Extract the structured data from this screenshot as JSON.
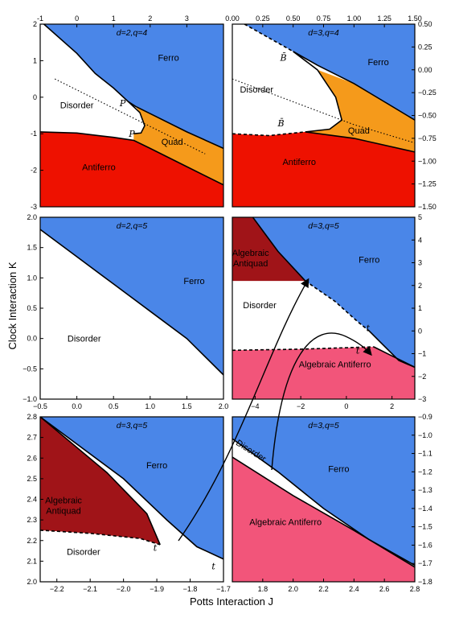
{
  "figure": {
    "xlabel": "Potts Interaction J",
    "ylabel": "Clock Interaction K"
  },
  "colors": {
    "ferro": "#4a86e8",
    "antiferro": "#ee1100",
    "quad": "#f59a1b",
    "algebraic_antiquad": "#a01418",
    "algebraic_antiferro": "#f2557a",
    "disorder": "#ffffff"
  },
  "chart_data": [
    {
      "type": "area",
      "title": "d=2,q=4",
      "xlim": [
        -1,
        4
      ],
      "ylim": [
        -3,
        2
      ],
      "xticks": [
        -1,
        0,
        1,
        2,
        3
      ],
      "yticks": [
        -3,
        -2,
        -1,
        0,
        1,
        2
      ],
      "xaxis_side": "top",
      "yaxis_side": "left",
      "regions": [
        {
          "name": "Ferro",
          "label_at": [
            2.5,
            1.0
          ]
        },
        {
          "name": "Disorder",
          "label_at": [
            0.0,
            -0.3
          ]
        },
        {
          "name": "Quad",
          "label_at": [
            2.6,
            -1.3
          ]
        },
        {
          "name": "Antiferro",
          "label_at": [
            0.6,
            -2.0
          ]
        }
      ],
      "boundaries": {
        "ferro_lower": [
          [
            -0.9,
            2.0
          ],
          [
            0.0,
            1.2
          ],
          [
            0.5,
            0.65
          ],
          [
            1.0,
            0.25
          ],
          [
            1.4,
            -0.12
          ],
          [
            1.6,
            -0.25
          ],
          [
            2.0,
            -0.45
          ],
          [
            3.0,
            -0.95
          ],
          [
            4.0,
            -1.4
          ]
        ],
        "disorder_dome": [
          [
            1.4,
            -0.12
          ],
          [
            1.72,
            -0.42
          ],
          [
            1.85,
            -0.78
          ],
          [
            1.75,
            -0.98
          ],
          [
            1.55,
            -1.0
          ]
        ],
        "antiferro_upper": [
          [
            -1.0,
            -0.95
          ],
          [
            0.0,
            -0.98
          ],
          [
            1.0,
            -1.1
          ],
          [
            1.55,
            -1.18
          ],
          [
            2.0,
            -1.4
          ],
          [
            3.0,
            -1.9
          ],
          [
            4.0,
            -2.4
          ]
        ],
        "dotted": [
          [
            -0.6,
            0.5
          ],
          [
            0.5,
            -0.05
          ],
          [
            1.5,
            -0.55
          ],
          [
            2.5,
            -1.05
          ],
          [
            3.5,
            -1.55
          ]
        ]
      },
      "annotations": [
        {
          "text": "P",
          "at": [
            1.25,
            -0.25
          ]
        },
        {
          "text": "P",
          "at": [
            1.5,
            -1.08
          ]
        }
      ]
    },
    {
      "type": "area",
      "title": "d=3,q=4",
      "xlim": [
        0.0,
        1.5
      ],
      "ylim": [
        -1.5,
        0.5
      ],
      "xticks": [
        "0.00",
        "0.25",
        "0.50",
        "0.75",
        "1.00",
        "1.25",
        "1.50"
      ],
      "yticks": [
        "−1.50",
        "−1.25",
        "−1.00",
        "−0.75",
        "−0.50",
        "−0.25",
        "0.00",
        "0.25",
        "0.50"
      ],
      "xaxis_side": "top",
      "yaxis_side": "right",
      "regions": [
        {
          "name": "Ferro",
          "label_at": [
            1.2,
            0.05
          ]
        },
        {
          "name": "Disorder",
          "label_at": [
            0.2,
            -0.25
          ]
        },
        {
          "name": "Quad",
          "label_at": [
            1.04,
            -0.7
          ]
        },
        {
          "name": "Antiferro",
          "label_at": [
            0.55,
            -1.04
          ]
        }
      ],
      "boundaries": {
        "ferro_lower_dashed": [
          [
            0.1,
            0.5
          ],
          [
            0.3,
            0.35
          ],
          [
            0.5,
            0.2
          ]
        ],
        "ferro_lower": [
          [
            0.5,
            0.2
          ],
          [
            0.7,
            0.05
          ],
          [
            1.0,
            -0.15
          ],
          [
            1.25,
            -0.35
          ],
          [
            1.5,
            -0.55
          ]
        ],
        "disorder_nose": [
          [
            0.5,
            0.2
          ],
          [
            0.7,
            0.0
          ],
          [
            0.85,
            -0.3
          ],
          [
            0.9,
            -0.55
          ],
          [
            0.8,
            -0.65
          ],
          [
            0.6,
            -0.68
          ]
        ],
        "antiferro_upper_dashed": [
          [
            0.0,
            -0.7
          ],
          [
            0.3,
            -0.72
          ],
          [
            0.6,
            -0.68
          ]
        ],
        "antiferro_upper": [
          [
            0.6,
            -0.68
          ],
          [
            1.0,
            -0.75
          ],
          [
            1.5,
            -0.9
          ]
        ],
        "dotted": [
          [
            0.0,
            -0.1
          ],
          [
            0.5,
            -0.35
          ],
          [
            1.0,
            -0.6
          ],
          [
            1.5,
            -0.8
          ]
        ]
      },
      "annotations": [
        {
          "text": "B̄",
          "at": [
            0.42,
            0.1
          ]
        },
        {
          "text": "B̄",
          "at": [
            0.4,
            -0.62
          ]
        }
      ]
    },
    {
      "type": "area",
      "title": "d=2,q=5",
      "xlim": [
        -0.5,
        2.0
      ],
      "ylim": [
        -1.0,
        2.0
      ],
      "xticks": [
        "−0.5",
        "0.0",
        "0.5",
        "1.0",
        "1.5",
        "2.0"
      ],
      "yticks": [
        "−1.0",
        "−0.5",
        "0.0",
        "0.5",
        "1.0",
        "1.5",
        "2.0"
      ],
      "xaxis_side": "bottom",
      "yaxis_side": "left",
      "regions": [
        {
          "name": "Ferro",
          "label_at": [
            1.6,
            0.9
          ]
        },
        {
          "name": "Disorder",
          "label_at": [
            0.1,
            -0.05
          ]
        }
      ],
      "boundaries": {
        "ferro_lower": [
          [
            -0.5,
            1.8
          ],
          [
            0.0,
            1.35
          ],
          [
            0.5,
            0.9
          ],
          [
            1.0,
            0.45
          ],
          [
            1.5,
            0.0
          ],
          [
            2.0,
            -0.6
          ]
        ]
      }
    },
    {
      "type": "area",
      "title": "d=3,q=5",
      "xlim": [
        -5,
        3
      ],
      "ylim": [
        -3,
        5
      ],
      "xticks": [
        "−4",
        "−2",
        "0",
        "2"
      ],
      "yticks": [
        "−3",
        "−2",
        "−1",
        "0",
        "1",
        "2",
        "3",
        "4",
        "5"
      ],
      "xaxis_side": "bottom",
      "yaxis_side": "right",
      "regions": [
        {
          "name": "Algebraic Antiquad",
          "label_at": [
            -4.2,
            3.3
          ]
        },
        {
          "name": "Ferro",
          "label_at": [
            1.0,
            3.0
          ]
        },
        {
          "name": "Disorder",
          "label_at": [
            -3.8,
            1.0
          ]
        },
        {
          "name": "Algebraic Antiferro",
          "label_at": [
            -0.5,
            -1.6
          ]
        }
      ],
      "boundaries": {
        "antiquad_diag": [
          [
            -4.1,
            5.0
          ],
          [
            -3.0,
            3.5
          ],
          [
            -1.8,
            2.2
          ]
        ],
        "ferro_lower_dashed": [
          [
            -1.8,
            2.2
          ],
          [
            -0.5,
            1.3
          ],
          [
            0.5,
            0.4
          ],
          [
            1.0,
            0.0
          ]
        ],
        "ferro_lower": [
          [
            1.0,
            0.0
          ],
          [
            1.5,
            -0.5
          ],
          [
            2.3,
            -1.3
          ],
          [
            3.0,
            -1.6
          ]
        ],
        "antiferro_upper_dashed": [
          [
            -5.0,
            -0.85
          ],
          [
            -2.0,
            -0.8
          ],
          [
            1.2,
            -0.7
          ]
        ],
        "antiferro_upper": [
          [
            1.2,
            -0.7
          ],
          [
            2.0,
            -1.1
          ],
          [
            3.0,
            -1.6
          ]
        ]
      },
      "annotations": [
        {
          "text": "t",
          "at": [
            0.95,
            0.0
          ]
        },
        {
          "text": "t",
          "at": [
            0.5,
            -1.0
          ]
        }
      ]
    },
    {
      "type": "area",
      "title": "d=3,q=5",
      "xlim": [
        -2.25,
        -1.7
      ],
      "ylim": [
        2.0,
        2.8
      ],
      "xticks": [
        "−2.2",
        "−2.1",
        "−2.0",
        "−1.9",
        "−1.8",
        "−1.7"
      ],
      "yticks": [
        "2.0",
        "2.1",
        "2.2",
        "2.3",
        "2.4",
        "2.5",
        "2.6",
        "2.7",
        "2.8"
      ],
      "xaxis_side": "bottom",
      "yaxis_side": "left",
      "regions": [
        {
          "name": "Ferro",
          "label_at": [
            -1.9,
            2.55
          ]
        },
        {
          "name": "Algebraic Antiquad",
          "label_at": [
            -2.18,
            2.38
          ]
        },
        {
          "name": "Disorder",
          "label_at": [
            -2.12,
            2.13
          ]
        }
      ],
      "boundaries": {
        "antiquad_outer": [
          [
            -2.25,
            2.8
          ],
          [
            -2.05,
            2.53
          ],
          [
            -1.93,
            2.33
          ],
          [
            -1.89,
            2.18
          ]
        ],
        "ferro_lower": [
          [
            -2.25,
            2.8
          ],
          [
            -2.0,
            2.5
          ],
          [
            -1.87,
            2.3
          ],
          [
            -1.78,
            2.17
          ],
          [
            -1.7,
            2.11
          ]
        ],
        "antiquad_lower_dashed": [
          [
            -2.25,
            2.25
          ],
          [
            -2.1,
            2.235
          ],
          [
            -1.95,
            2.21
          ],
          [
            -1.89,
            2.18
          ]
        ]
      },
      "annotations": [
        {
          "text": "t",
          "at": [
            -1.905,
            2.15
          ]
        },
        {
          "text": "t",
          "at": [
            -1.73,
            2.06
          ]
        }
      ]
    },
    {
      "type": "area",
      "title": "d=3,q=5",
      "xlim": [
        1.6,
        2.8
      ],
      "ylim": [
        -1.8,
        -0.9
      ],
      "xticks": [
        "1.8",
        "2.0",
        "2.2",
        "2.4",
        "2.6",
        "2.8"
      ],
      "yticks": [
        "−1.8",
        "−1.7",
        "−1.6",
        "−1.5",
        "−1.4",
        "−1.3",
        "−1.2",
        "−1.1",
        "−1.0",
        "−0.9"
      ],
      "xaxis_side": "bottom",
      "yaxis_side": "right",
      "regions": [
        {
          "name": "Disorder",
          "label_at": [
            1.62,
            -1.05
          ]
        },
        {
          "name": "Ferro",
          "label_at": [
            2.3,
            -1.2
          ]
        },
        {
          "name": "Algebraic Antiferro",
          "label_at": [
            1.95,
            -1.49
          ]
        }
      ],
      "boundaries": {
        "ferro_lower": [
          [
            1.6,
            -1.02
          ],
          [
            1.9,
            -1.2
          ],
          [
            2.2,
            -1.4
          ],
          [
            2.5,
            -1.57
          ],
          [
            2.8,
            -1.71
          ]
        ],
        "antiferro_upper": [
          [
            1.6,
            -1.12
          ],
          [
            2.0,
            -1.33
          ],
          [
            2.4,
            -1.52
          ],
          [
            2.8,
            -1.72
          ]
        ]
      }
    }
  ]
}
